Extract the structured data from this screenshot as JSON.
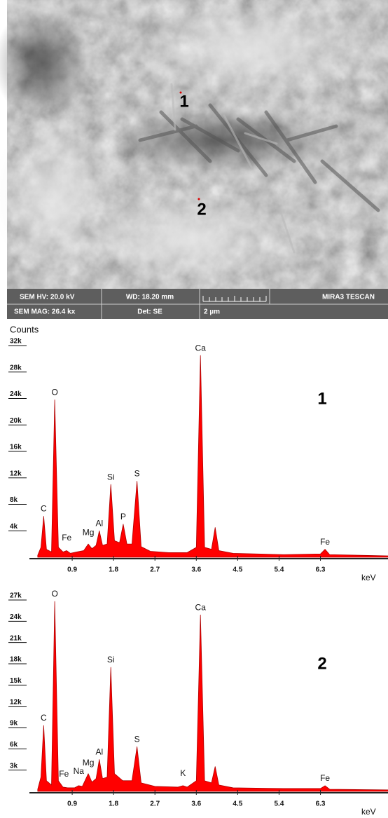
{
  "sem_image": {
    "markers": [
      "1",
      "2"
    ],
    "info_bar": {
      "rows": [
        [
          "SEM HV: 20.0 kV",
          "WD: 18.20 mm",
          "MIRA3 TESCAN"
        ],
        [
          "SEM MAG: 26.4 kx",
          "Det: SE",
          "2 µm"
        ]
      ]
    }
  },
  "chart_data": [
    {
      "type": "area",
      "y_label": "Counts",
      "x_label": "keV",
      "panel_label": "1",
      "color": "#ff0000",
      "xlim": [
        0,
        7.8
      ],
      "ylim": [
        0,
        32000
      ],
      "xticks": [
        0.9,
        1.8,
        2.7,
        3.6,
        4.5,
        5.4,
        6.3
      ],
      "yticks": [
        {
          "value": 4000,
          "label": "4k"
        },
        {
          "value": 8000,
          "label": "8k"
        },
        {
          "value": 12000,
          "label": "12k"
        },
        {
          "value": 16000,
          "label": "16k"
        },
        {
          "value": 20000,
          "label": "20k"
        },
        {
          "value": 24000,
          "label": "24k"
        },
        {
          "value": 28000,
          "label": "28k"
        },
        {
          "value": 32000,
          "label": "32k"
        }
      ],
      "x": [
        0.15,
        0.22,
        0.28,
        0.34,
        0.45,
        0.52,
        0.6,
        0.7,
        0.78,
        0.86,
        1.0,
        1.15,
        1.25,
        1.33,
        1.42,
        1.49,
        1.56,
        1.66,
        1.74,
        1.82,
        1.93,
        2.01,
        2.09,
        2.2,
        2.31,
        2.4,
        2.6,
        3.0,
        3.4,
        3.6,
        3.69,
        3.78,
        3.93,
        4.01,
        4.09,
        4.4,
        5.5,
        6.3,
        6.4,
        6.5,
        7.8
      ],
      "values": [
        300,
        1500,
        6200,
        1200,
        800,
        23800,
        1500,
        800,
        1000,
        600,
        800,
        1000,
        2000,
        1300,
        1800,
        4000,
        1800,
        2000,
        11000,
        2500,
        2200,
        5000,
        2000,
        2000,
        11500,
        1600,
        900,
        700,
        700,
        1500,
        30500,
        1500,
        1200,
        4500,
        1000,
        600,
        400,
        500,
        1200,
        400,
        200
      ],
      "peak_labels": [
        {
          "text": "C",
          "x": 0.28,
          "y": 6200
        },
        {
          "text": "O",
          "x": 0.52,
          "y": 23800
        },
        {
          "text": "Fe",
          "x": 0.78,
          "y": 1800
        },
        {
          "text": "Mg",
          "x": 1.25,
          "y": 2600
        },
        {
          "text": "Al",
          "x": 1.49,
          "y": 4000
        },
        {
          "text": "Si",
          "x": 1.74,
          "y": 11000
        },
        {
          "text": "P",
          "x": 2.01,
          "y": 5000
        },
        {
          "text": "S",
          "x": 2.31,
          "y": 11500
        },
        {
          "text": "Ca",
          "x": 3.69,
          "y": 30500
        },
        {
          "text": "Fe",
          "x": 6.4,
          "y": 1200
        }
      ]
    },
    {
      "type": "area",
      "x_label": "keV",
      "panel_label": "2",
      "color": "#ff0000",
      "xlim": [
        0,
        7.8
      ],
      "ylim": [
        0,
        27000
      ],
      "xticks": [
        0.9,
        1.8,
        2.7,
        3.6,
        4.5,
        5.4,
        6.3
      ],
      "yticks": [
        {
          "value": 3000,
          "label": "3k"
        },
        {
          "value": 6000,
          "label": "6k"
        },
        {
          "value": 9000,
          "label": "9k"
        },
        {
          "value": 12000,
          "label": "12k"
        },
        {
          "value": 15000,
          "label": "15k"
        },
        {
          "value": 18000,
          "label": "18k"
        },
        {
          "value": 21000,
          "label": "21k"
        },
        {
          "value": 24000,
          "label": "24k"
        },
        {
          "value": 27000,
          "label": "27k"
        }
      ],
      "x": [
        0.15,
        0.22,
        0.28,
        0.34,
        0.45,
        0.52,
        0.6,
        0.7,
        0.8,
        0.95,
        1.04,
        1.12,
        1.25,
        1.33,
        1.42,
        1.49,
        1.56,
        1.66,
        1.74,
        1.82,
        2.0,
        2.2,
        2.31,
        2.4,
        2.7,
        3.2,
        3.31,
        3.4,
        3.6,
        3.69,
        3.78,
        3.93,
        4.01,
        4.09,
        4.4,
        5.5,
        6.3,
        6.4,
        6.5,
        7.8
      ],
      "values": [
        300,
        2000,
        9300,
        1500,
        900,
        26800,
        1500,
        600,
        500,
        500,
        800,
        700,
        2500,
        1300,
        1800,
        4500,
        1800,
        2000,
        17500,
        2500,
        1500,
        1500,
        6300,
        1200,
        700,
        600,
        800,
        600,
        1500,
        24900,
        1500,
        1200,
        3500,
        900,
        500,
        400,
        400,
        800,
        300,
        200
      ],
      "peak_labels": [
        {
          "text": "C",
          "x": 0.28,
          "y": 9300
        },
        {
          "text": "O",
          "x": 0.52,
          "y": 26800
        },
        {
          "text": "Fe",
          "x": 0.72,
          "y": 1400
        },
        {
          "text": "Na",
          "x": 1.04,
          "y": 1800
        },
        {
          "text": "Mg",
          "x": 1.25,
          "y": 3000
        },
        {
          "text": "Al",
          "x": 1.49,
          "y": 4500
        },
        {
          "text": "Si",
          "x": 1.74,
          "y": 17500
        },
        {
          "text": "S",
          "x": 2.31,
          "y": 6300
        },
        {
          "text": "K",
          "x": 3.31,
          "y": 1500
        },
        {
          "text": "Ca",
          "x": 3.69,
          "y": 24900
        },
        {
          "text": "Fe",
          "x": 6.4,
          "y": 800
        }
      ]
    }
  ]
}
